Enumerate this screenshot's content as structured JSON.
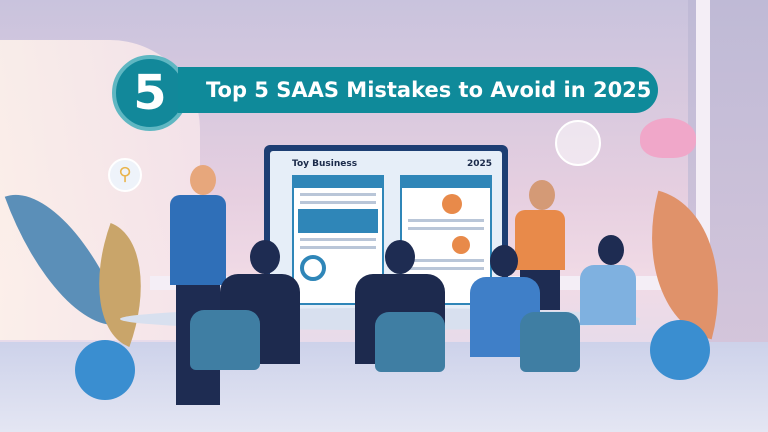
{
  "banner": {
    "number": "5",
    "title": "Top 5 SAAS Mistakes to Avoid in 2025"
  },
  "screen": {
    "title": "Toy Business",
    "year": "2025"
  },
  "colors": {
    "banner": "#0f8a9a",
    "monitor": "#1d3e73",
    "accent_orange": "#e88a4a"
  }
}
